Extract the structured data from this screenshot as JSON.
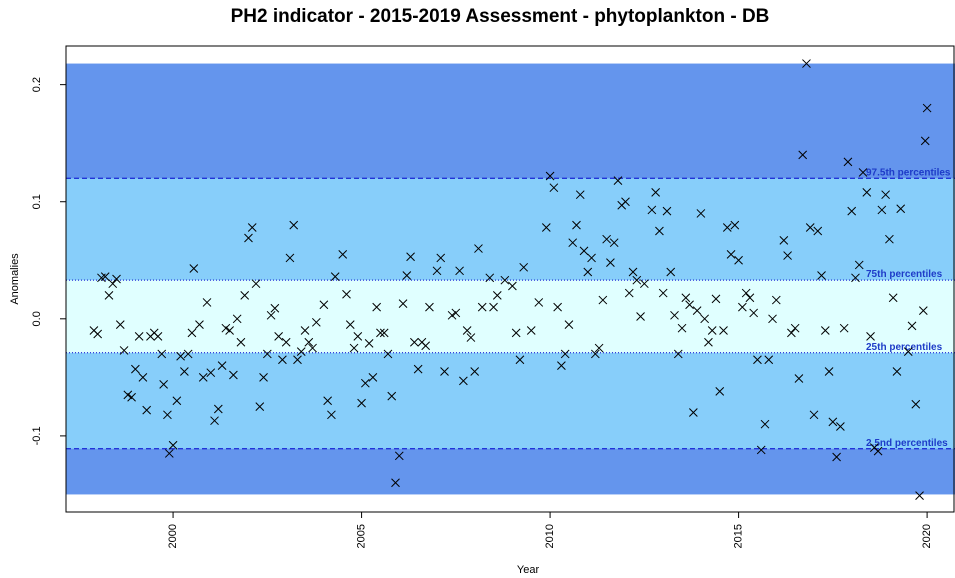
{
  "chart_data": {
    "type": "scatter",
    "title": "PH2 indicator - 2015-2019 Assessment - phytoplankton - DB",
    "xlabel": "Year",
    "ylabel": "Anomalies",
    "xlim": [
      1997.16,
      2020.74
    ],
    "ylim": [
      -0.165,
      0.233
    ],
    "xticks": [
      2000,
      2005,
      2010,
      2015,
      2020
    ],
    "yticks": [
      -0.1,
      {
        "value": 0,
        "label": "0.0"
      },
      0.1,
      0.2
    ],
    "bands": [
      {
        "range": [
          -0.15,
          0.218
        ],
        "color": "#6495ed"
      },
      {
        "range": [
          -0.111,
          0.12
        ],
        "color": "#87cefa"
      },
      {
        "range": [
          -0.029,
          0.033
        ],
        "color": "#e0ffff"
      }
    ],
    "percentile_lines": [
      {
        "label": "97.5th percentiles",
        "value": 0.12,
        "style": "dashed"
      },
      {
        "label": "75th percentiles",
        "value": 0.033,
        "style": "dotted"
      },
      {
        "label": "25th percentiles",
        "value": -0.029,
        "style": "dotted"
      },
      {
        "label": "2.5nd percentiles",
        "value": -0.111,
        "style": "dashed"
      }
    ],
    "series": [
      {
        "color": "#000000",
        "x": [
          1997.9,
          1998.0,
          1998.1,
          1998.2,
          1998.3,
          1998.4,
          1998.5,
          1998.6,
          1998.7,
          1998.8,
          1998.9,
          1999.0,
          1999.1,
          1999.2,
          1999.3,
          1999.4,
          1999.5,
          1999.6,
          1999.7,
          1999.75,
          1999.85,
          1999.9,
          2000.0,
          2000.1,
          2000.2,
          2000.3,
          2000.4,
          2000.5,
          2000.55,
          2000.7,
          2000.8,
          2000.9,
          2001.0,
          2001.1,
          2001.2,
          2001.3,
          2001.4,
          2001.5,
          2001.6,
          2001.7,
          2001.8,
          2001.9,
          2002.0,
          2002.1,
          2002.2,
          2002.3,
          2002.4,
          2002.5,
          2002.6,
          2002.7,
          2002.8,
          2002.9,
          2003.0,
          2003.1,
          2003.2,
          2003.3,
          2003.4,
          2003.5,
          2003.6,
          2003.7,
          2003.8,
          2004.0,
          2004.1,
          2004.2,
          2004.3,
          2004.5,
          2004.6,
          2004.7,
          2004.8,
          2004.9,
          2005.0,
          2005.1,
          2005.2,
          2005.3,
          2005.4,
          2005.5,
          2005.6,
          2005.7,
          2005.8,
          2005.9,
          2006.0,
          2006.1,
          2006.2,
          2006.3,
          2006.4,
          2006.5,
          2006.6,
          2006.7,
          2006.8,
          2007.0,
          2007.1,
          2007.2,
          2007.4,
          2007.5,
          2007.6,
          2007.7,
          2007.8,
          2007.9,
          2008.0,
          2008.1,
          2008.2,
          2008.4,
          2008.5,
          2008.6,
          2008.8,
          2009.0,
          2009.1,
          2009.2,
          2009.3,
          2009.5,
          2009.7,
          2009.9,
          2010.0,
          2010.1,
          2010.2,
          2010.3,
          2010.4,
          2010.5,
          2010.6,
          2010.7,
          2010.8,
          2010.9,
          2011.0,
          2011.1,
          2011.2,
          2011.3,
          2011.4,
          2011.5,
          2011.6,
          2011.7,
          2011.8,
          2011.9,
          2012.0,
          2012.1,
          2012.2,
          2012.3,
          2012.4,
          2012.5,
          2012.7,
          2012.8,
          2012.9,
          2013.0,
          2013.1,
          2013.2,
          2013.3,
          2013.4,
          2013.5,
          2013.6,
          2013.7,
          2013.8,
          2013.9,
          2014.0,
          2014.1,
          2014.2,
          2014.3,
          2014.4,
          2014.5,
          2014.6,
          2014.7,
          2014.8,
          2014.9,
          2015.0,
          2015.1,
          2015.2,
          2015.3,
          2015.4,
          2015.5,
          2015.6,
          2015.7,
          2015.8,
          2015.9,
          2016.0,
          2016.2,
          2016.3,
          2016.4,
          2016.5,
          2016.6,
          2016.7,
          2016.8,
          2016.9,
          2017.0,
          2017.1,
          2017.2,
          2017.3,
          2017.4,
          2017.5,
          2017.6,
          2017.7,
          2017.8,
          2017.9,
          2018.0,
          2018.1,
          2018.2,
          2018.3,
          2018.4,
          2018.5,
          2018.6,
          2018.7,
          2018.8,
          2018.9,
          2019.0,
          2019.1,
          2019.2,
          2019.3,
          2019.5,
          2019.6,
          2019.7,
          2019.8,
          2019.9,
          2019.95,
          2020.0
        ],
        "values": [
          -0.01,
          -0.013,
          0.035,
          0.036,
          0.02,
          0.03,
          0.034,
          -0.005,
          -0.027,
          -0.065,
          -0.067,
          -0.043,
          -0.015,
          -0.05,
          -0.078,
          -0.015,
          -0.012,
          -0.015,
          -0.03,
          -0.056,
          -0.082,
          -0.115,
          -0.108,
          -0.07,
          -0.032,
          -0.045,
          -0.03,
          -0.012,
          0.043,
          -0.005,
          -0.05,
          0.014,
          -0.046,
          -0.087,
          -0.077,
          -0.04,
          -0.008,
          -0.01,
          -0.048,
          0.0,
          -0.02,
          0.02,
          0.069,
          0.078,
          0.03,
          -0.075,
          -0.05,
          -0.03,
          0.003,
          0.009,
          -0.015,
          -0.035,
          -0.02,
          0.052,
          0.08,
          -0.035,
          -0.028,
          -0.01,
          -0.02,
          -0.025,
          -0.003,
          0.012,
          -0.07,
          -0.082,
          0.036,
          0.055,
          0.021,
          -0.005,
          -0.025,
          -0.015,
          -0.072,
          -0.055,
          -0.021,
          -0.05,
          0.01,
          -0.012,
          -0.012,
          -0.03,
          -0.066,
          -0.14,
          -0.117,
          0.013,
          0.037,
          0.053,
          -0.02,
          -0.043,
          -0.02,
          -0.023,
          0.01,
          0.041,
          0.052,
          -0.045,
          0.003,
          0.005,
          0.041,
          -0.053,
          -0.01,
          -0.016,
          -0.045,
          0.06,
          0.01,
          0.035,
          0.01,
          0.02,
          0.033,
          0.028,
          -0.012,
          -0.035,
          0.044,
          -0.01,
          0.014,
          0.078,
          0.122,
          0.112,
          0.01,
          -0.04,
          -0.03,
          -0.005,
          0.065,
          0.08,
          0.106,
          0.058,
          0.04,
          0.052,
          -0.03,
          -0.025,
          0.016,
          0.068,
          0.048,
          0.065,
          0.118,
          0.097,
          0.1,
          0.022,
          0.04,
          0.033,
          0.002,
          0.03,
          0.093,
          0.108,
          0.075,
          0.022,
          0.092,
          0.04,
          0.003,
          -0.03,
          -0.008,
          0.018,
          0.012,
          -0.08,
          0.007,
          0.09,
          0.0,
          -0.02,
          -0.01,
          0.017,
          -0.062,
          -0.01,
          0.078,
          0.055,
          0.08,
          0.05,
          0.01,
          0.022,
          0.018,
          0.005,
          -0.035,
          -0.112,
          -0.09,
          -0.035,
          0.0,
          0.016,
          0.067,
          0.054,
          -0.012,
          -0.008,
          -0.051,
          0.14,
          0.218,
          0.078,
          -0.082,
          0.075,
          0.037,
          -0.01,
          -0.045,
          -0.088,
          -0.118,
          -0.092,
          -0.008,
          0.134,
          0.092,
          0.035,
          0.046,
          0.125,
          0.108,
          -0.015,
          -0.11,
          -0.113,
          0.093,
          0.106,
          0.068,
          0.018,
          -0.045,
          0.094,
          -0.028,
          -0.006,
          -0.073,
          -0.151,
          0.007,
          0.152,
          0.18
        ]
      }
    ]
  }
}
